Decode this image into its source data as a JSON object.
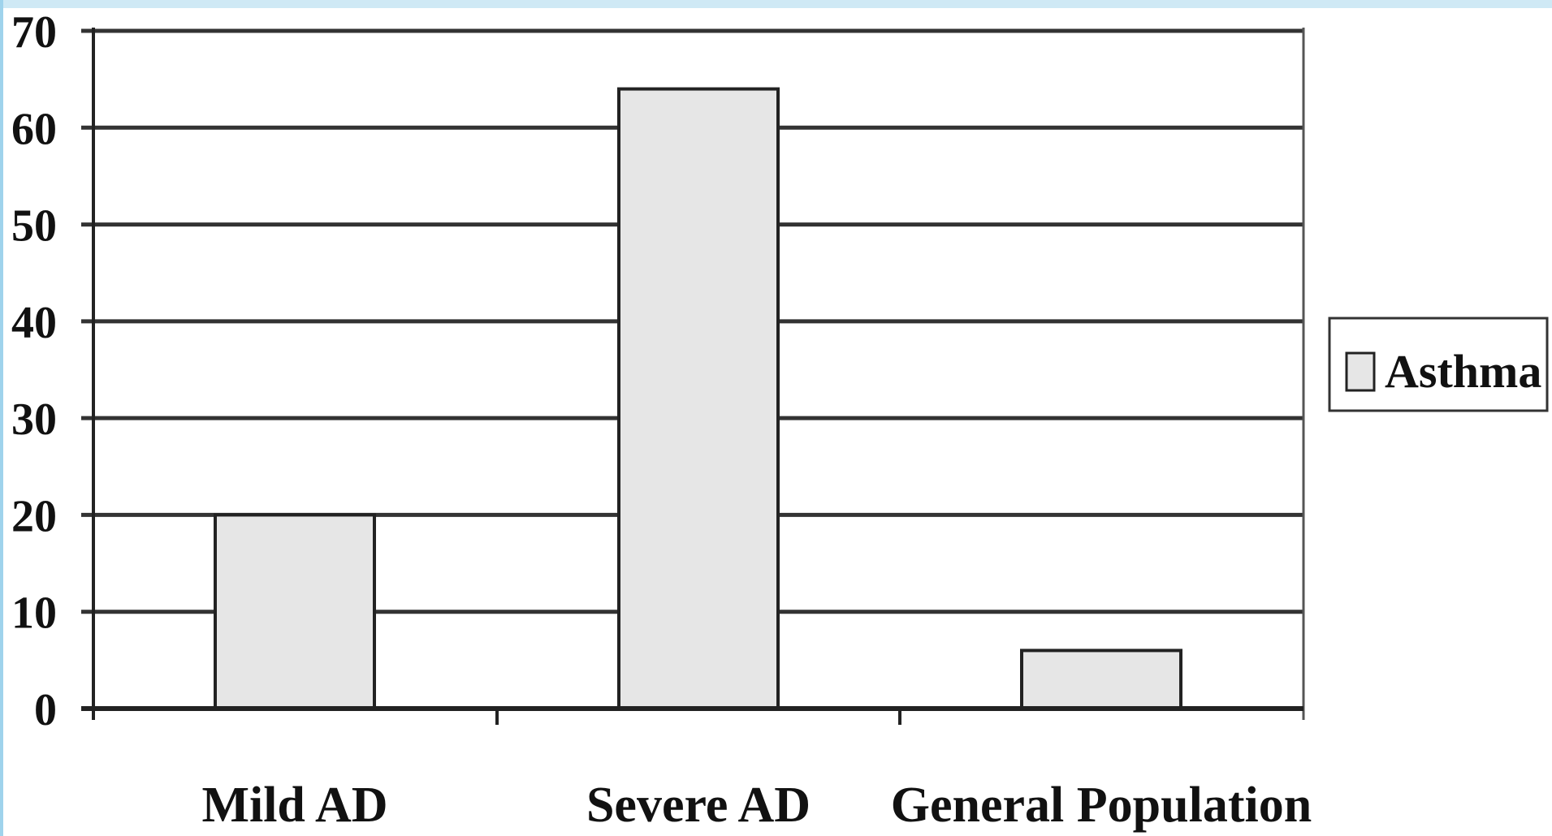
{
  "chart_data": {
    "type": "bar",
    "categories": [
      "Mild AD",
      "Severe AD",
      "General Population"
    ],
    "series": [
      {
        "name": "Asthma",
        "values": [
          20,
          64,
          6
        ],
        "color": "#e6e6e6"
      }
    ],
    "yticks": [
      "0",
      "10",
      "20",
      "30",
      "40",
      "50",
      "60",
      "70"
    ],
    "ylim": [
      0,
      70
    ],
    "grid": true,
    "legend_position": "right"
  },
  "colors": {
    "bar_fill": "#e6e6e6",
    "bar_stroke": "#222222",
    "grid": "#333333",
    "frame": "#bfe3f2"
  }
}
